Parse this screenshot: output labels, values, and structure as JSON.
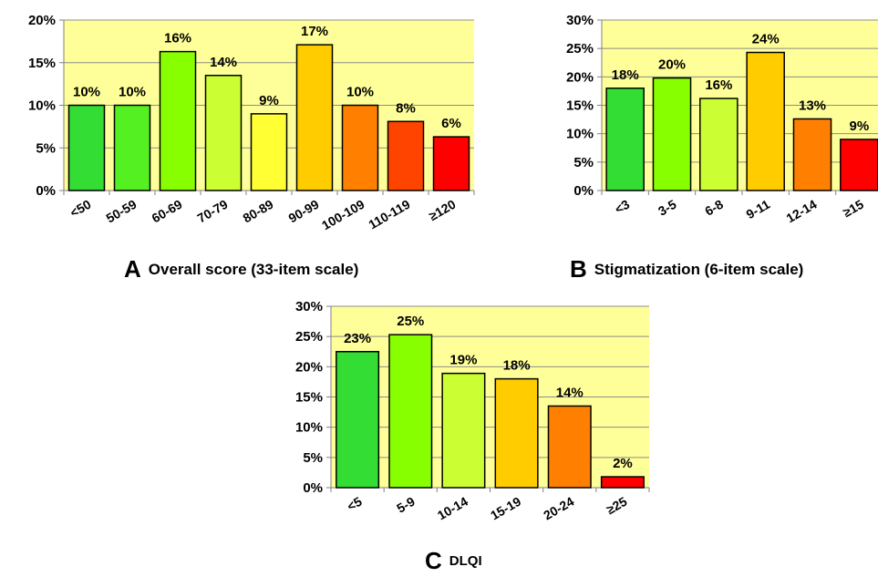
{
  "colors": {
    "plot_background": "#FFFF99",
    "gridline": "#8C8C8C",
    "axis": "#808080",
    "bar_outline": "#000000",
    "scale_green_bright": "#33DD33",
    "scale_green": "#55F022",
    "scale_lime": "#88FF00",
    "scale_yellow_green": "#CCFF33",
    "scale_yellow": "#FFFF33",
    "scale_amber": "#FFCC00",
    "scale_orange": "#FF8000",
    "scale_red_orange": "#FF4400",
    "scale_red": "#FF0000"
  },
  "chart_data": [
    {
      "id": "A",
      "type": "bar",
      "panel_letter": "A",
      "title": "Overall score (33-item scale)",
      "xlabel": "",
      "ylabel": "",
      "categories": [
        "<50",
        "50-59",
        "60-69",
        "70-79",
        "80-89",
        "90-99",
        "100-109",
        "110-119",
        "≥120"
      ],
      "values": [
        10,
        10,
        16.3,
        13.5,
        9,
        17.1,
        10,
        8.1,
        6.3
      ],
      "data_labels": [
        "10%",
        "10%",
        "16%",
        "14%",
        "9%",
        "17%",
        "10%",
        "8%",
        "6%"
      ],
      "bar_colors": [
        "#33DD33",
        "#55F022",
        "#88FF00",
        "#CCFF33",
        "#FFFF33",
        "#FFCC00",
        "#FF8000",
        "#FF4400",
        "#FF0000"
      ],
      "ylim": [
        0,
        20
      ],
      "yticks": [
        0,
        5,
        10,
        15,
        20
      ],
      "ytick_labels": [
        "0%",
        "5%",
        "10%",
        "15%",
        "20%"
      ],
      "grid": true
    },
    {
      "id": "B",
      "type": "bar",
      "panel_letter": "B",
      "title": "Stigmatization (6-item scale)",
      "xlabel": "",
      "ylabel": "",
      "categories": [
        "<3",
        "3-5",
        "6-8",
        "9-11",
        "12-14",
        "≥15"
      ],
      "values": [
        18,
        19.8,
        16.2,
        24.3,
        12.6,
        9
      ],
      "data_labels": [
        "18%",
        "20%",
        "16%",
        "24%",
        "13%",
        "9%"
      ],
      "bar_colors": [
        "#33DD33",
        "#88FF00",
        "#CCFF33",
        "#FFCC00",
        "#FF8000",
        "#FF0000"
      ],
      "ylim": [
        0,
        30
      ],
      "yticks": [
        0,
        5,
        10,
        15,
        20,
        25,
        30
      ],
      "ytick_labels": [
        "0%",
        "5%",
        "10%",
        "15%",
        "20%",
        "25%",
        "30%"
      ],
      "grid": true
    },
    {
      "id": "C",
      "type": "bar",
      "panel_letter": "C",
      "title": "DLQI",
      "xlabel": "",
      "ylabel": "",
      "categories": [
        "<5",
        "5-9",
        "10-14",
        "15-19",
        "20-24",
        "≥25"
      ],
      "values": [
        22.5,
        25.3,
        18.9,
        18,
        13.5,
        1.8
      ],
      "data_labels": [
        "23%",
        "25%",
        "19%",
        "18%",
        "14%",
        "2%"
      ],
      "bar_colors": [
        "#33DD33",
        "#88FF00",
        "#CCFF33",
        "#FFCC00",
        "#FF8000",
        "#FF0000"
      ],
      "ylim": [
        0,
        30
      ],
      "yticks": [
        0,
        5,
        10,
        15,
        20,
        25,
        30
      ],
      "ytick_labels": [
        "0%",
        "5%",
        "10%",
        "15%",
        "20%",
        "25%",
        "30%"
      ],
      "grid": true
    }
  ]
}
